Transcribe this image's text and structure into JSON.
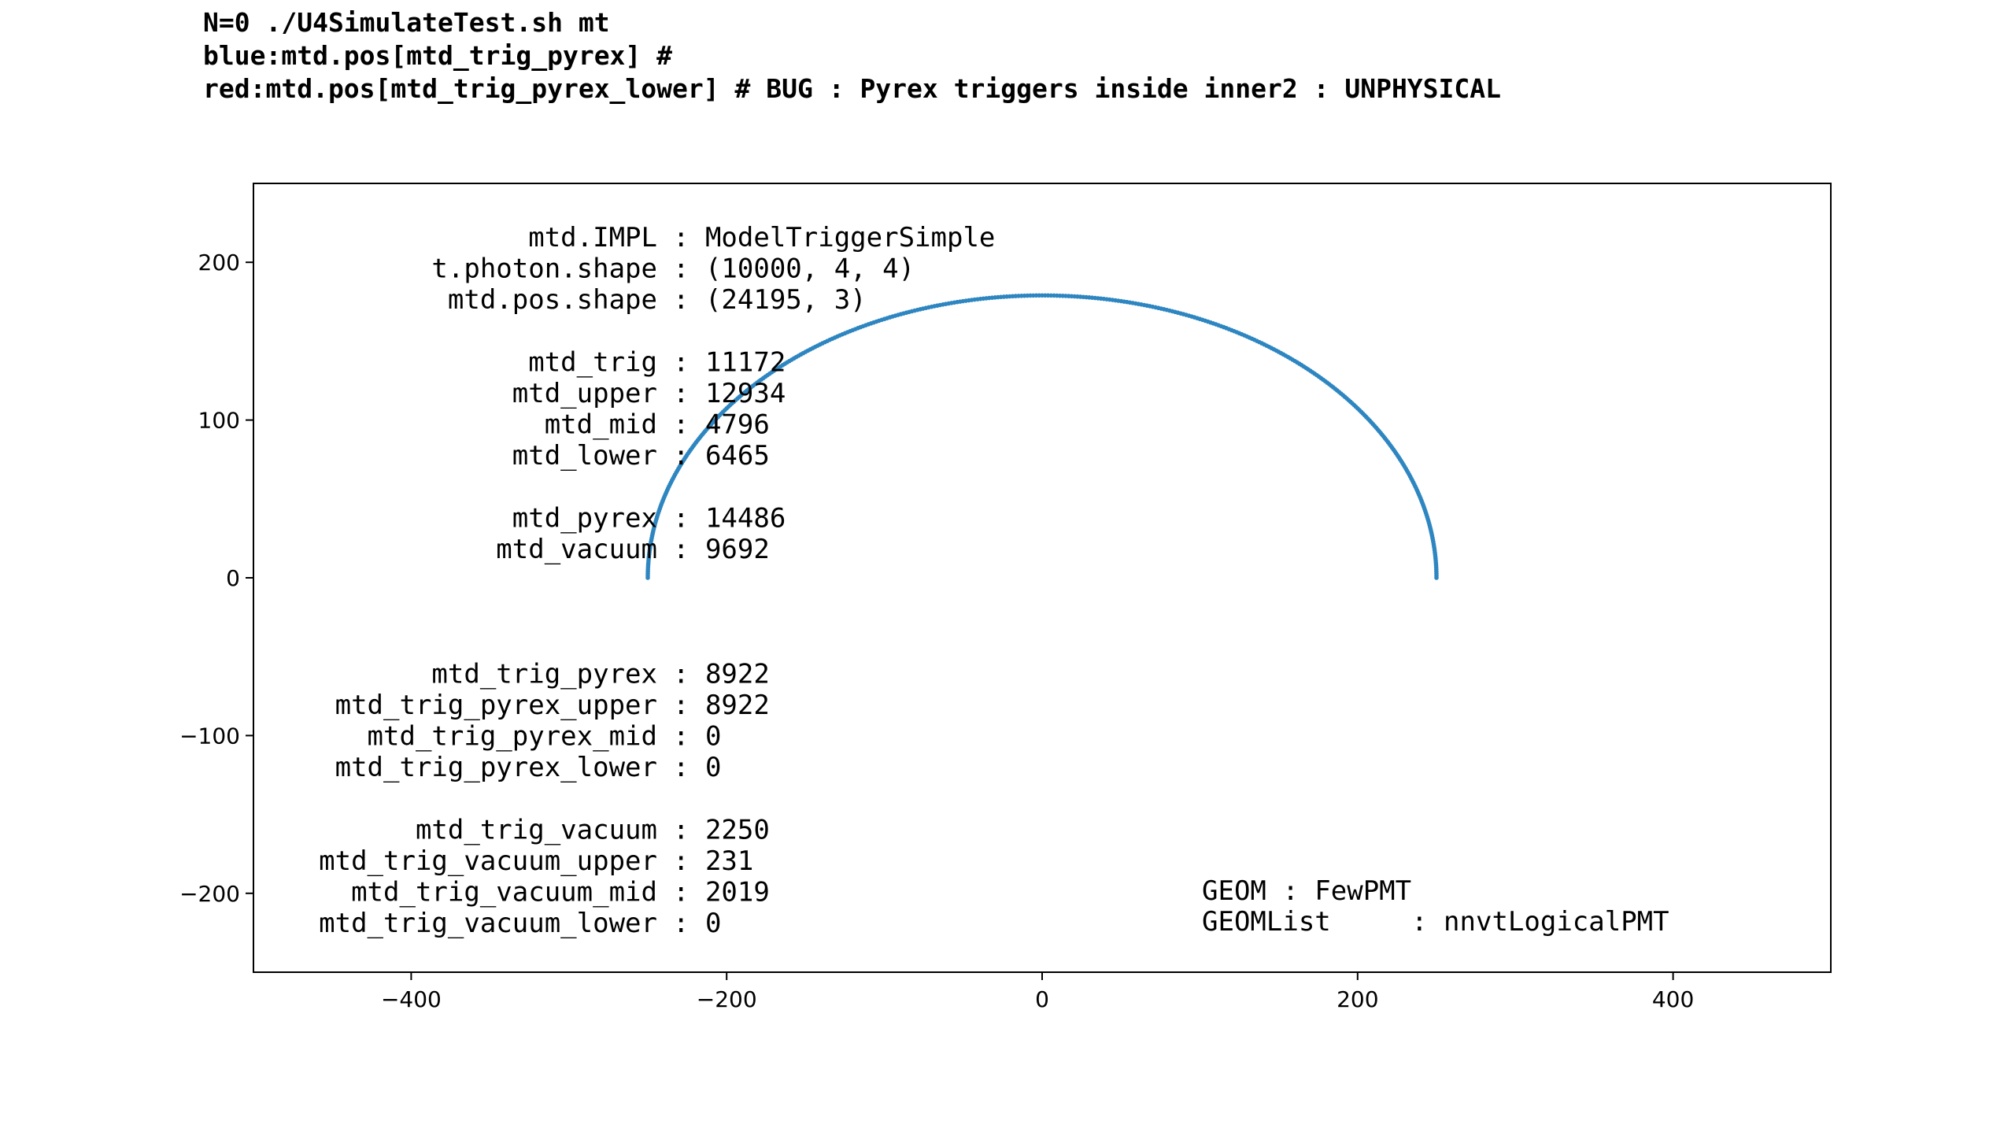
{
  "chart_data": {
    "type": "scatter",
    "title": [
      "N=0 ./U4SimulateTest.sh mt",
      "blue:mtd.pos[mtd_trig_pyrex] #",
      "red:mtd.pos[mtd_trig_pyrex_lower] # BUG : Pyrex triggers inside inner2 : UNPHYSICAL"
    ],
    "xlabel": "",
    "ylabel": "",
    "xlim": [
      -500,
      500
    ],
    "ylim": [
      -250,
      250
    ],
    "xticks": [
      "−400",
      "−200",
      "0",
      "200",
      "400"
    ],
    "xtick_values": [
      -400,
      -200,
      0,
      200,
      400
    ],
    "yticks": [
      "200",
      "100",
      "0",
      "−100",
      "−200"
    ],
    "ytick_values": [
      200,
      100,
      0,
      -100,
      -200
    ],
    "grid": false,
    "series": [
      {
        "color": "#2e86c1",
        "shape": "half-ellipse",
        "center": [
          0,
          0
        ],
        "semi_axis_x": 250,
        "semi_axis_y": 179
      }
    ],
    "annotations": {
      "counts_labels": [
        "mtd.IMPL",
        "t.photon.shape",
        "mtd.pos.shape",
        "",
        "mtd_trig",
        "mtd_upper",
        "mtd_mid",
        "mtd_lower",
        "",
        "mtd_pyrex",
        "mtd_vacuum",
        "",
        "",
        "",
        "mtd_trig_pyrex",
        "mtd_trig_pyrex_upper",
        "mtd_trig_pyrex_mid",
        "mtd_trig_pyrex_lower",
        "",
        "mtd_trig_vacuum",
        "mtd_trig_vacuum_upper",
        "mtd_trig_vacuum_mid",
        "mtd_trig_vacuum_lower"
      ],
      "counts_values": [
        ": ModelTriggerSimple",
        ": (10000, 4, 4)",
        ": (24195, 3)",
        "",
        ": 11172",
        ": 12934",
        ": 4796",
        ": 6465",
        "",
        ": 14486",
        ": 9692",
        "",
        "",
        "",
        ": 8922",
        ": 8922",
        ": 0",
        ": 0",
        "",
        ": 2250",
        ": 231",
        ": 2019",
        ": 0"
      ],
      "geom_lines": [
        "GEOM : FewPMT",
        "GEOMList     : nnvtLogicalPMT"
      ]
    }
  }
}
